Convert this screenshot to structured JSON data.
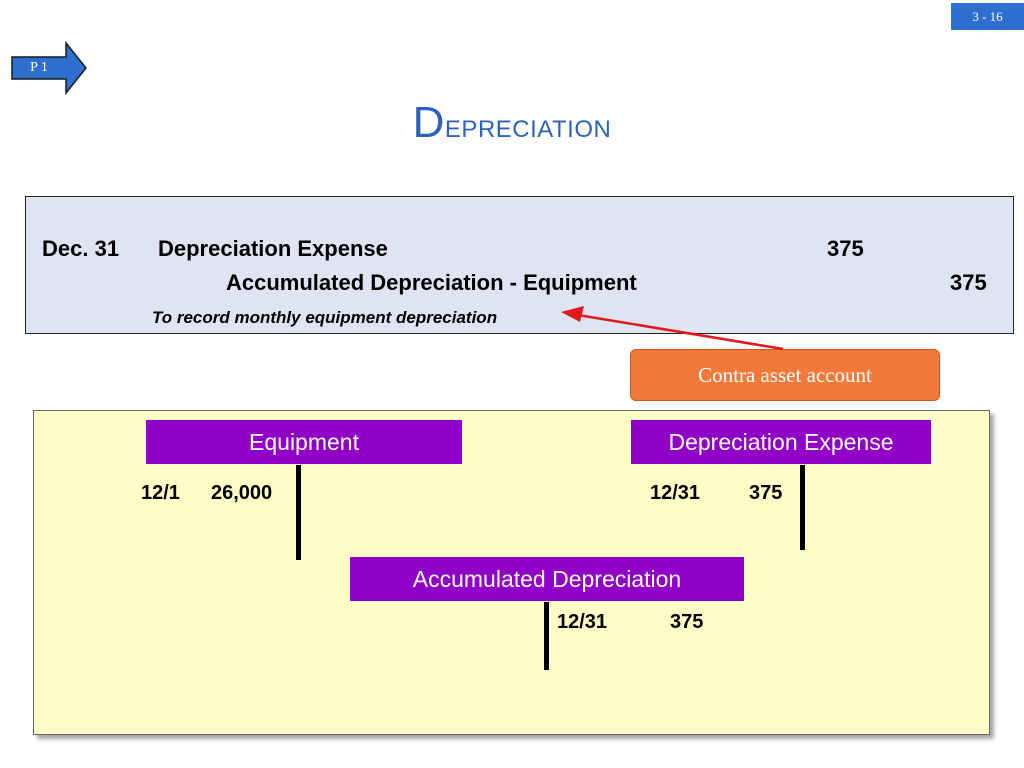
{
  "slide_number": "3 - 16",
  "objective_tag": "P 1",
  "title": {
    "first": "D",
    "rest": "epreciation"
  },
  "journal_entry": {
    "date": "Dec. 31",
    "debit_account": "Depreciation Expense",
    "debit_amount": "375",
    "credit_account": "Accumulated Depreciation - Equipment",
    "credit_amount": "375",
    "memo": "To record monthly equipment depreciation"
  },
  "callout": "Contra asset account",
  "ledgers": {
    "equipment": {
      "title": "Equipment",
      "date": "12/1",
      "amount": "26,000"
    },
    "depreciation_expense": {
      "title": "Depreciation Expense",
      "date": "12/31",
      "amount": "375"
    },
    "accumulated_depreciation": {
      "title": "Accumulated Depreciation",
      "date": "12/31",
      "amount": "375"
    }
  },
  "colors": {
    "slide_number_bg": "#2f6fd0",
    "title": "#2f62b9",
    "journal_bg": "#dee4f1",
    "callout_bg": "#f2793a",
    "ledger_panel_bg": "#fffdc6",
    "account_header_bg": "#9100c6",
    "pointer_arrow": "#e0191b"
  }
}
